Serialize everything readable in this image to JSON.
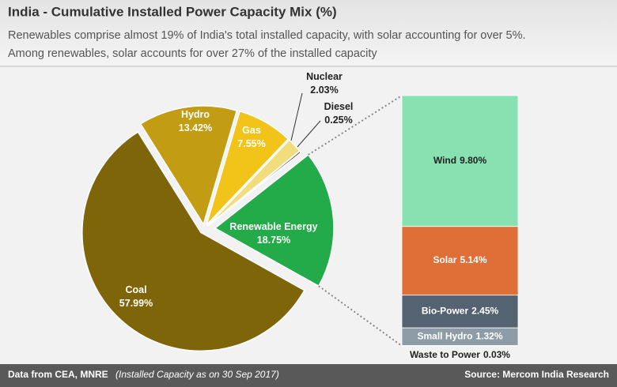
{
  "header": {
    "title": "India - Cumulative Installed Power Capacity Mix (%)",
    "subtitle": [
      "Renewables comprise almost 19% of India's total installed capacity, with solar accounting for over 5%.",
      "Among renewables, solar accounts for over 27% of the installed capacity"
    ]
  },
  "chart_data": [
    {
      "type": "pie",
      "categories": [
        "Hydro",
        "Gas",
        "Nuclear",
        "Diesel",
        "Renewable Energy",
        "Coal"
      ],
      "values": [
        13.42,
        7.55,
        2.03,
        0.25,
        18.75,
        57.99
      ],
      "value_labels": [
        "13.42%",
        "7.55%",
        "2.03%",
        "0.25%",
        "18.75%",
        "57.99%"
      ],
      "colors": [
        "#c29d14",
        "#f2c41a",
        "#f1dd7c",
        "#3a3a3a",
        "#23aa49",
        "#7f6509"
      ]
    },
    {
      "type": "stacked-bar",
      "categories": [
        "Wind",
        "Solar",
        "Bio-Power",
        "Small Hydro",
        "Waste to Power"
      ],
      "values": [
        9.8,
        5.14,
        2.45,
        1.32,
        0.03
      ],
      "value_labels": [
        "9.80%",
        "5.14%",
        "2.45%",
        "1.32%",
        "0.03%"
      ],
      "colors": [
        "#88e1b0",
        "#df6f37",
        "#556271",
        "#8e9ca7",
        "#a9c9c1"
      ]
    }
  ],
  "footer": {
    "source_note": "Data from CEA, MNRE",
    "date_note": "(Installed Capacity as on 30 Sep 2017)",
    "source": "Source: Mercom India Research"
  }
}
